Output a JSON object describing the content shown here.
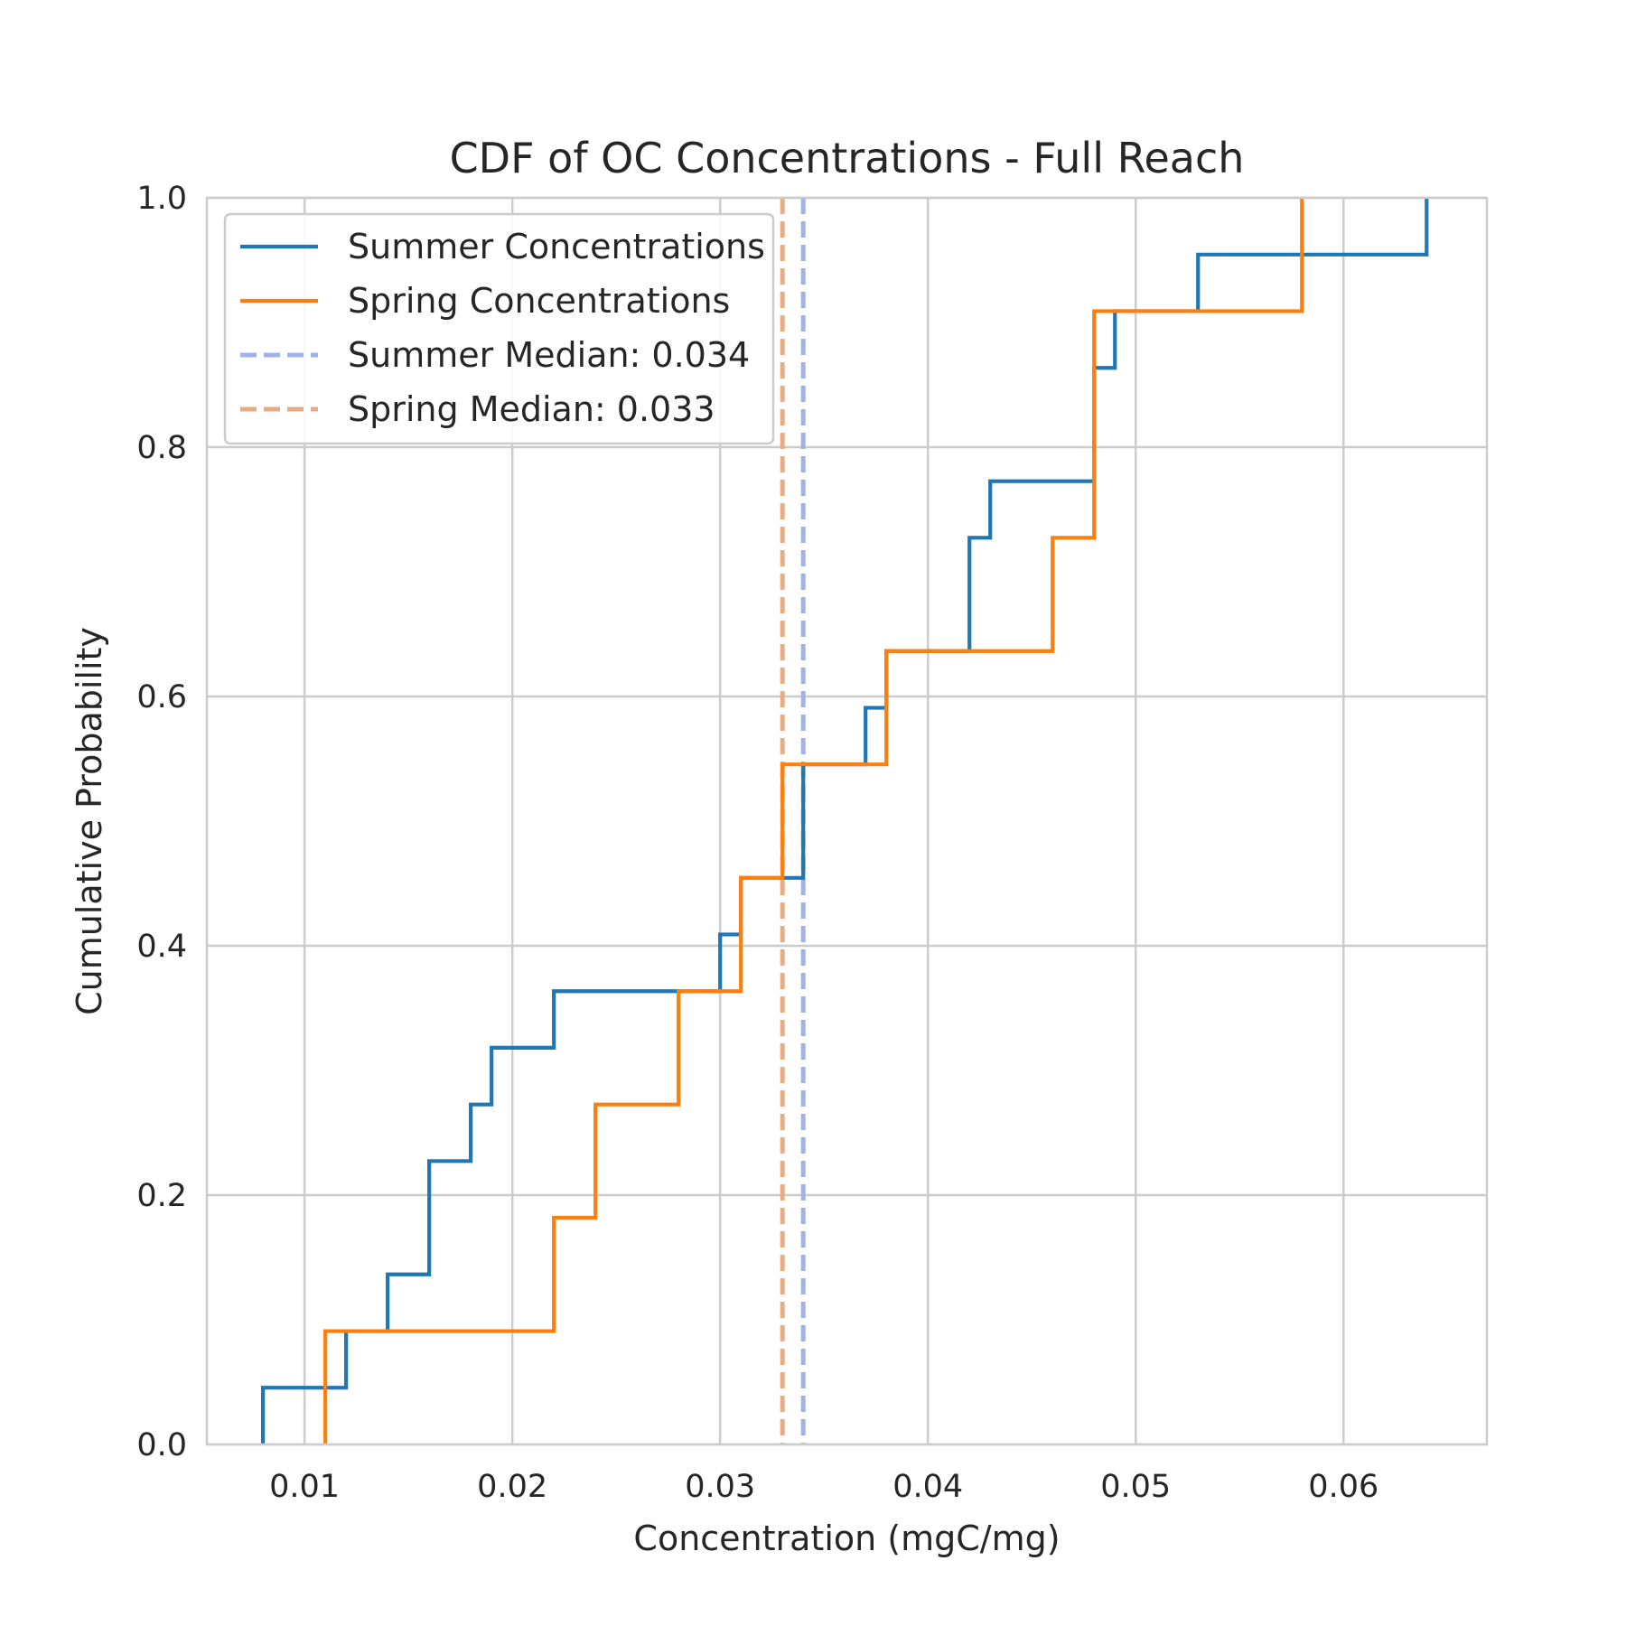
{
  "chart_data": {
    "type": "line",
    "subtype": "step-cdf",
    "title": "CDF of OC Concentrations - Full Reach",
    "xlabel": "Concentration (mgC/mg)",
    "ylabel": "Cumulative Probability",
    "xlim": [
      0.0053,
      0.0669
    ],
    "ylim": [
      0.0,
      1.0
    ],
    "xticks": [
      0.01,
      0.02,
      0.03,
      0.04,
      0.05,
      0.06
    ],
    "xtick_labels": [
      "0.01",
      "0.02",
      "0.03",
      "0.04",
      "0.05",
      "0.06"
    ],
    "yticks": [
      0.0,
      0.2,
      0.4,
      0.6,
      0.8,
      1.0
    ],
    "ytick_labels": [
      "0.0",
      "0.2",
      "0.4",
      "0.6",
      "0.8",
      "1.0"
    ],
    "grid": true,
    "legend_position": "top-left",
    "series": [
      {
        "name": "Summer Concentrations",
        "color": "#1f77b4",
        "style": "solid",
        "steps": [
          [
            0.008,
            0.0455
          ],
          [
            0.012,
            0.0909
          ],
          [
            0.014,
            0.1364
          ],
          [
            0.016,
            0.2273
          ],
          [
            0.018,
            0.2727
          ],
          [
            0.019,
            0.3182
          ],
          [
            0.022,
            0.3636
          ],
          [
            0.03,
            0.4091
          ],
          [
            0.031,
            0.4545
          ],
          [
            0.034,
            0.5455
          ],
          [
            0.037,
            0.5909
          ],
          [
            0.038,
            0.6364
          ],
          [
            0.042,
            0.7273
          ],
          [
            0.043,
            0.7727
          ],
          [
            0.048,
            0.8636
          ],
          [
            0.049,
            0.9091
          ],
          [
            0.053,
            0.9545
          ],
          [
            0.064,
            1.0
          ]
        ]
      },
      {
        "name": "Spring Concentrations",
        "color": "#ff7f0e",
        "style": "solid",
        "steps": [
          [
            0.011,
            0.0909
          ],
          [
            0.022,
            0.1818
          ],
          [
            0.024,
            0.2727
          ],
          [
            0.028,
            0.3636
          ],
          [
            0.031,
            0.4545
          ],
          [
            0.033,
            0.5455
          ],
          [
            0.038,
            0.6364
          ],
          [
            0.046,
            0.7273
          ],
          [
            0.048,
            0.9091
          ],
          [
            0.058,
            1.0
          ]
        ]
      },
      {
        "name": "Summer Median: 0.034",
        "type": "vline",
        "x": 0.034,
        "color": "#9fb3ea",
        "style": "dashed"
      },
      {
        "name": "Spring Median: 0.033",
        "type": "vline",
        "x": 0.033,
        "color": "#e8ac84",
        "style": "dashed"
      }
    ]
  }
}
